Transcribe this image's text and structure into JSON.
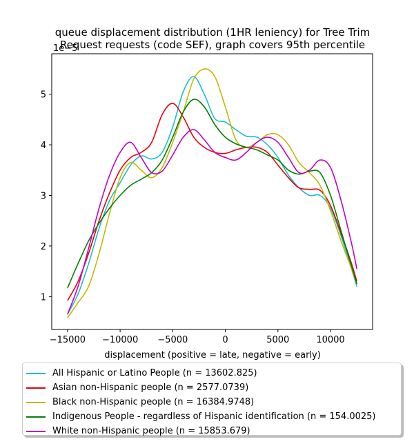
{
  "chart_data": {
    "type": "line",
    "title": "queue displacement distribution (1HR leniency) for Tree Trim\nRequest  requests (code SEF), graph covers 95th percentile",
    "xlabel": "displacement (positive = late, negative = early)",
    "ylabel": "",
    "offset_text": "1e−5",
    "xlim": [
      -16500,
      14000
    ],
    "ylim": [
      0.35,
      5.8
    ],
    "xticks": [
      -15000,
      -10000,
      -5000,
      0,
      5000,
      10000
    ],
    "yticks": [
      1,
      2,
      3,
      4,
      5
    ],
    "grid": false,
    "legend_placement": "below",
    "series": [
      {
        "name": "All Hispanic or Latino People (n = 13602.825)",
        "color": "#17becf",
        "x": [
          -15000,
          -14000,
          -13000,
          -12000,
          -11000,
          -10000,
          -9000,
          -8000,
          -7000,
          -6000,
          -5000,
          -4000,
          -3000,
          -2000,
          -1000,
          0,
          1000,
          2000,
          3000,
          4000,
          5000,
          6000,
          7000,
          8000,
          9000,
          10000,
          11000,
          12000,
          12500
        ],
        "y": [
          0.65,
          1.05,
          1.65,
          2.35,
          2.9,
          3.25,
          3.6,
          3.78,
          3.72,
          3.85,
          4.35,
          5.05,
          5.35,
          5.0,
          4.52,
          4.45,
          4.3,
          4.17,
          4.15,
          4.0,
          3.75,
          3.4,
          3.15,
          3.0,
          3.0,
          2.75,
          2.2,
          1.55,
          1.2
        ]
      },
      {
        "name": "Asian non-Hispanic people (n = 2577.0739)",
        "color": "#e8000b",
        "x": [
          -15000,
          -14000,
          -13000,
          -12000,
          -11000,
          -10000,
          -9000,
          -8000,
          -7000,
          -6000,
          -5000,
          -4000,
          -3000,
          -2000,
          -1000,
          0,
          1000,
          2000,
          3000,
          4000,
          5000,
          6000,
          7000,
          8000,
          9000,
          10000,
          11000,
          12000,
          12500
        ],
        "y": [
          0.92,
          1.3,
          1.85,
          2.5,
          3.05,
          3.5,
          3.75,
          3.85,
          4.05,
          4.6,
          4.82,
          4.55,
          4.15,
          3.95,
          3.85,
          3.83,
          3.9,
          3.95,
          3.95,
          3.85,
          3.6,
          3.35,
          3.15,
          3.12,
          3.1,
          2.8,
          2.25,
          1.65,
          1.3
        ]
      },
      {
        "name": "Black non-Hispanic people (n = 16384.9748)",
        "color": "#c2b800",
        "x": [
          -15000,
          -14000,
          -13000,
          -12000,
          -11000,
          -10000,
          -9000,
          -8000,
          -7000,
          -6000,
          -5000,
          -4000,
          -3000,
          -2000,
          -1000,
          0,
          1000,
          2000,
          3000,
          4000,
          5000,
          6000,
          7000,
          8000,
          9000,
          10000,
          11000,
          12000,
          12500
        ],
        "y": [
          0.58,
          0.88,
          1.2,
          1.85,
          2.65,
          3.35,
          3.65,
          3.5,
          3.35,
          3.55,
          4.05,
          4.65,
          5.3,
          5.5,
          5.35,
          4.75,
          4.1,
          3.95,
          4.05,
          4.2,
          4.2,
          4.0,
          3.65,
          3.45,
          3.2,
          2.7,
          2.1,
          1.55,
          1.25
        ]
      },
      {
        "name": "Indigenous People - regardless of Hispanic identification (n = 154.0025)",
        "color": "#008000",
        "x": [
          -15000,
          -14000,
          -13000,
          -12000,
          -11000,
          -10000,
          -9000,
          -8000,
          -7000,
          -6000,
          -5000,
          -4000,
          -3000,
          -2000,
          -1000,
          0,
          1000,
          2000,
          3000,
          4000,
          5000,
          6000,
          7000,
          8000,
          9000,
          10000,
          11000,
          12000,
          12500
        ],
        "y": [
          1.17,
          1.65,
          2.1,
          2.45,
          2.75,
          3.0,
          3.2,
          3.32,
          3.45,
          3.7,
          4.15,
          4.65,
          4.9,
          4.75,
          4.4,
          4.15,
          4.02,
          3.95,
          3.9,
          3.8,
          3.7,
          3.5,
          3.42,
          3.48,
          3.45,
          3.0,
          2.3,
          1.6,
          1.25
        ]
      },
      {
        "name": "White non-Hispanic people (n = 15853.679)",
        "color": "#c000c0",
        "x": [
          -15000,
          -14000,
          -13000,
          -12000,
          -11000,
          -10000,
          -9000,
          -8000,
          -7000,
          -6000,
          -5000,
          -4000,
          -3000,
          -2000,
          -1000,
          0,
          1000,
          2000,
          3000,
          4000,
          5000,
          6000,
          7000,
          8000,
          9000,
          10000,
          11000,
          12000,
          12500
        ],
        "y": [
          0.65,
          1.2,
          1.95,
          2.75,
          3.4,
          3.85,
          4.05,
          3.75,
          3.45,
          3.48,
          3.8,
          4.15,
          4.3,
          4.1,
          3.85,
          3.75,
          3.7,
          3.85,
          4.05,
          4.15,
          4.05,
          3.75,
          3.45,
          3.5,
          3.7,
          3.55,
          2.9,
          2.05,
          1.55
        ]
      }
    ]
  }
}
